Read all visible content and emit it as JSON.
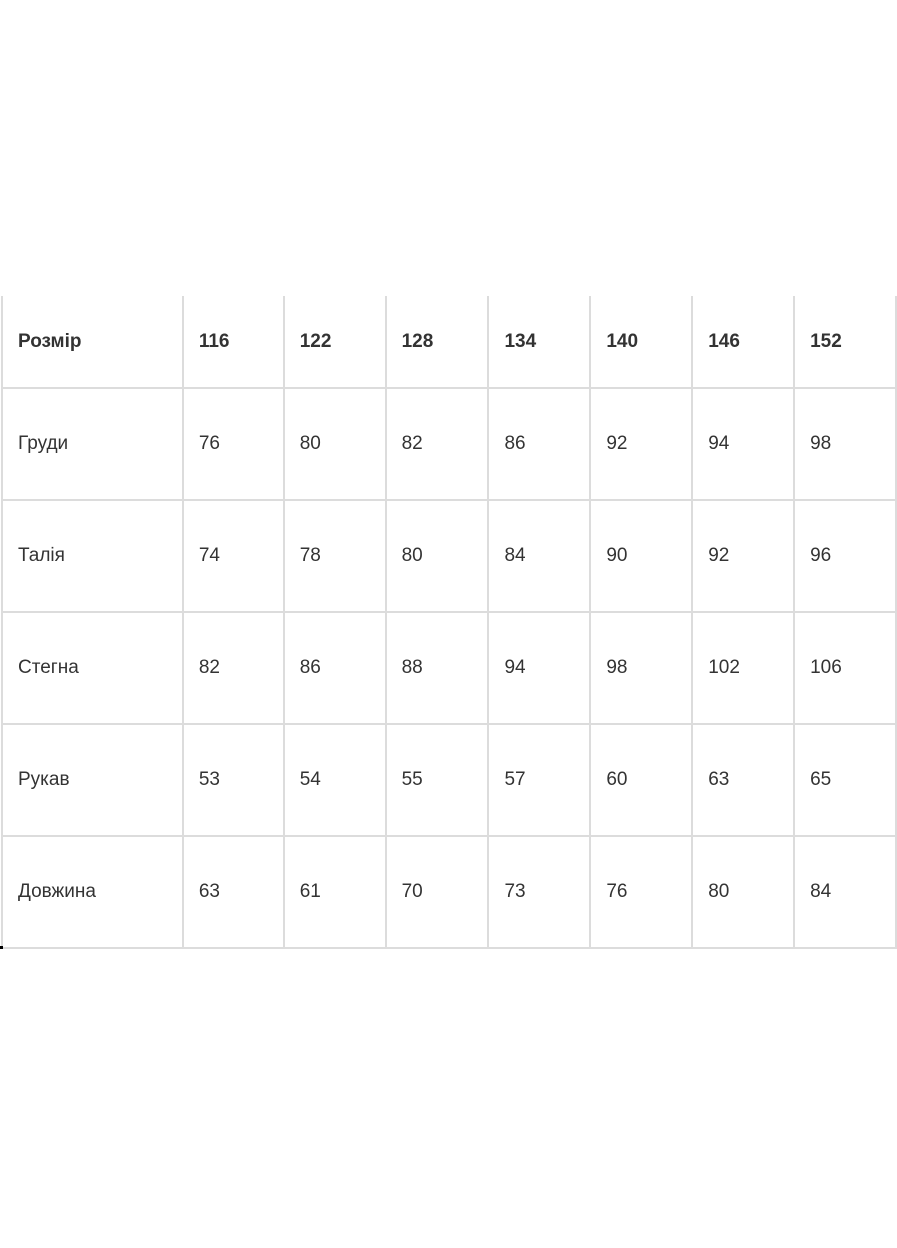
{
  "table": {
    "header": [
      "Розмір",
      "116",
      "122",
      "128",
      "134",
      "140",
      "146",
      "152"
    ],
    "rows": [
      [
        "Груди",
        "76",
        "80",
        "82",
        "86",
        "92",
        "94",
        "98"
      ],
      [
        "Талія",
        "74",
        "78",
        "80",
        "84",
        "90",
        "92",
        "96"
      ],
      [
        "Стегна",
        "82",
        "86",
        "88",
        "94",
        "98",
        "102",
        "106"
      ],
      [
        "Рукав",
        "53",
        "54",
        "55",
        "57",
        "60",
        "63",
        "65"
      ],
      [
        "Довжина",
        "63",
        "61",
        "70",
        "73",
        "76",
        "80",
        "84"
      ]
    ]
  },
  "colors": {
    "text": "#333333",
    "border": "#dcdcdc"
  }
}
